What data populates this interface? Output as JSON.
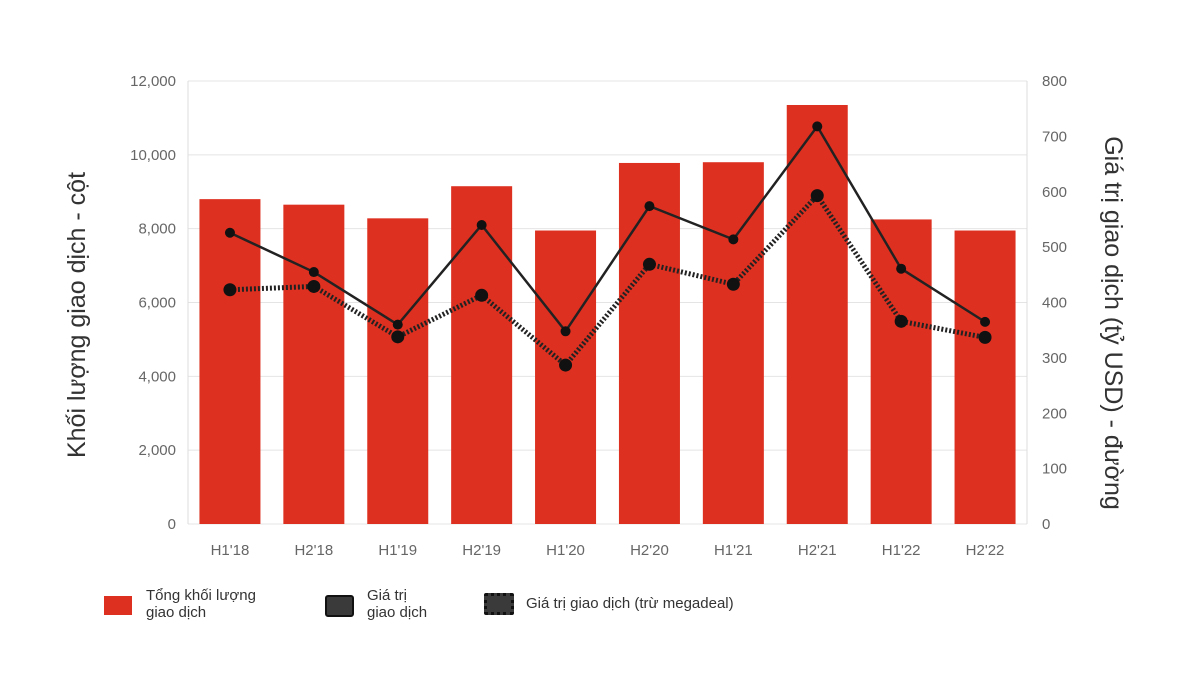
{
  "chart_data": {
    "type": "bar",
    "categories": [
      "H1'18",
      "H2'18",
      "H1'19",
      "H2'19",
      "H1'20",
      "H2'20",
      "H1'21",
      "H2'21",
      "H1'22",
      "H2'22"
    ],
    "series": [
      {
        "name": "Tổng khối lượng giao dịch",
        "type": "bar",
        "axis": "left",
        "color": "#dd3020",
        "values": [
          8800,
          8650,
          8280,
          9150,
          7950,
          9780,
          9800,
          11350,
          8250,
          7950
        ]
      },
      {
        "name": "Giá trị giao dịch",
        "type": "line",
        "axis": "right",
        "style": "solid",
        "color": "#222222",
        "values": [
          526,
          455,
          360,
          540,
          348,
          574,
          514,
          718,
          461,
          365
        ]
      },
      {
        "name": "Giá trị giao dịch (trừ megadeal)",
        "type": "line",
        "axis": "right",
        "style": "dotted",
        "color": "#222222",
        "values": [
          423,
          429,
          338,
          413,
          287,
          469,
          433,
          593,
          366,
          337
        ]
      }
    ],
    "ylabel": "Khối lượng giao dịch - cột",
    "y2label": "Giá trị giao dịch (tỷ USD) - đường",
    "ylim": [
      0,
      12000
    ],
    "yticks": [
      "0",
      "2,000",
      "4,000",
      "6,000",
      "8,000",
      "10,000",
      "12,000"
    ],
    "y2lim": [
      0,
      800
    ],
    "y2ticks": [
      "0",
      "100",
      "200",
      "300",
      "400",
      "500",
      "600",
      "700",
      "800"
    ],
    "grid": true,
    "legend_position": "bottom-left"
  },
  "legend": {
    "bar_label_line1": "Tổng khối lượng",
    "bar_label_line2": "giao dịch",
    "line_label_line1": "Giá trị",
    "line_label_line2": "giao dịch",
    "dotted_label": "Giá trị giao dịch (trừ megadeal)"
  }
}
